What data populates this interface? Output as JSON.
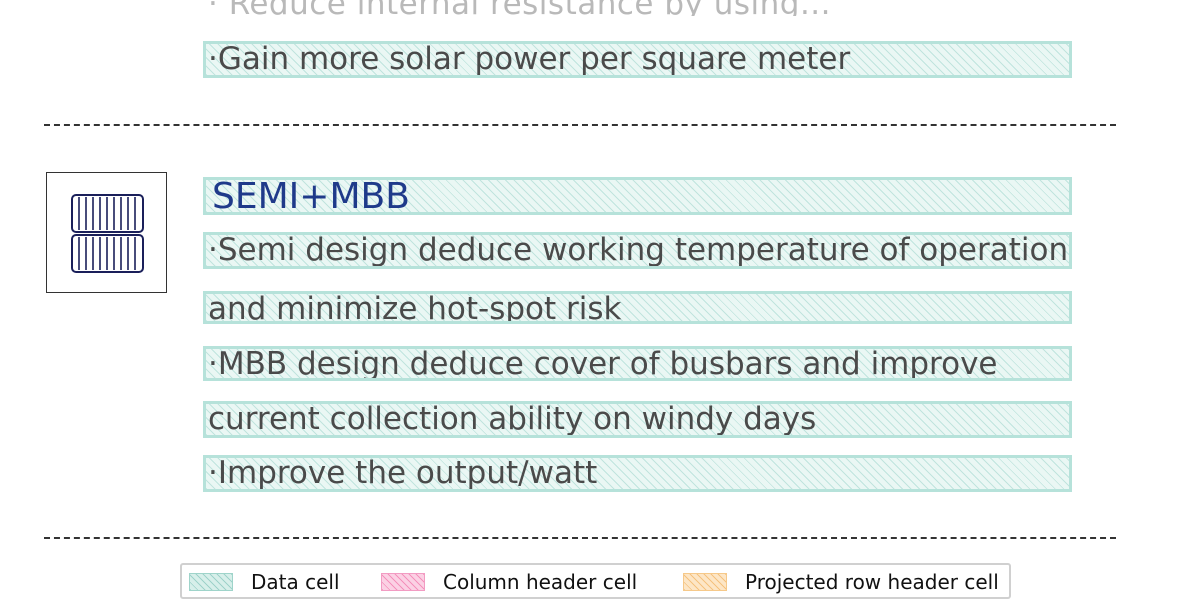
{
  "top_section": {
    "cut_off_line": "· Reduce internal resistance by using...",
    "last_line": "·Gain more solar power per square meter"
  },
  "semi_mbb_section": {
    "title": "SEMI+MBB",
    "icon": "half-cell-solar-panel-icon",
    "lines": [
      "·Semi design deduce working temperature of operation",
      "and minimize hot-spot risk",
      "·MBB design deduce cover of busbars and improve",
      "current collection ability on windy days",
      "·Improve the output/watt"
    ]
  },
  "legend": {
    "items": [
      {
        "label": "Data cell",
        "color": "#b6e2da"
      },
      {
        "label": "Column header cell",
        "color": "#f29cc3"
      },
      {
        "label": "Projected row header cell",
        "color": "#f6c98a"
      }
    ]
  }
}
